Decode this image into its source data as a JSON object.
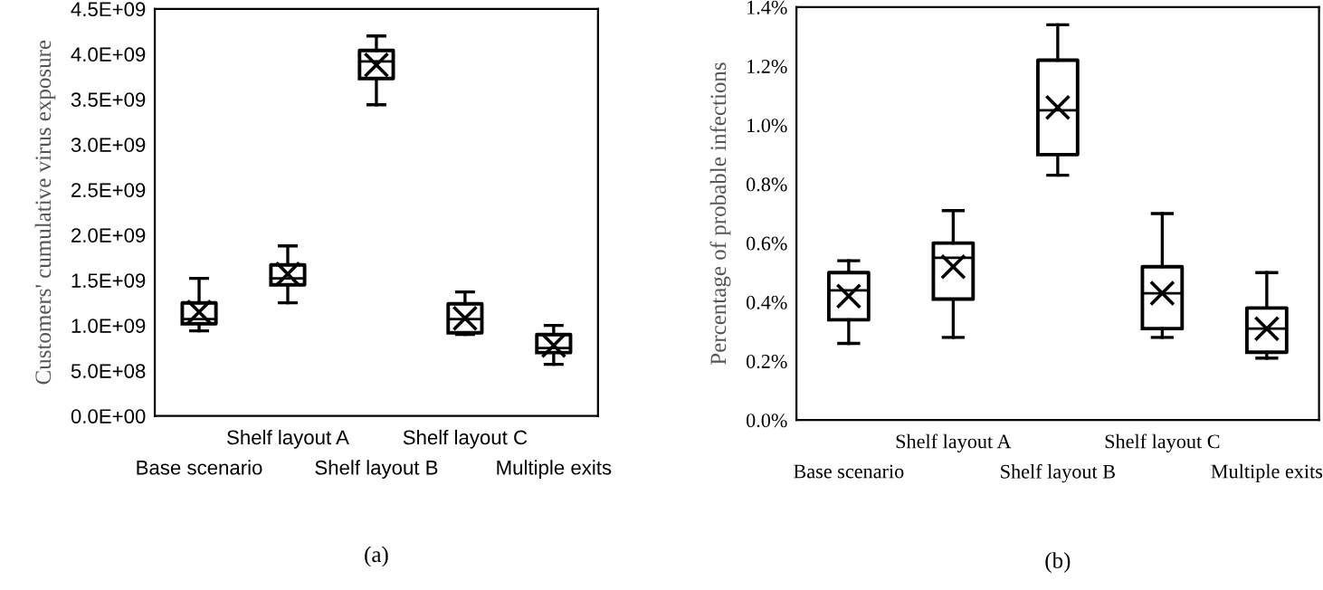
{
  "chart_data": [
    {
      "type": "box",
      "ylabel": "Customers' cumulative virus exposure",
      "categories": [
        "Base scenario",
        "Shelf layout A",
        "Shelf layout B",
        "Shelf layout C",
        "Multiple exits"
      ],
      "boxes": [
        {
          "low": 940000000,
          "q1": 1020000000,
          "median": 1070000000,
          "q3": 1250000000,
          "high": 1520000000,
          "mean": 1150000000
        },
        {
          "low": 1250000000,
          "q1": 1450000000,
          "median": 1520000000,
          "q3": 1670000000,
          "high": 1880000000,
          "mean": 1570000000
        },
        {
          "low": 3440000000,
          "q1": 3730000000,
          "median": 3920000000,
          "q3": 4040000000,
          "high": 4200000000,
          "mean": 3880000000
        },
        {
          "low": 900000000,
          "q1": 920000000,
          "median": 1070000000,
          "q3": 1240000000,
          "high": 1370000000,
          "mean": 1080000000
        },
        {
          "low": 570000000,
          "q1": 700000000,
          "median": 750000000,
          "q3": 900000000,
          "high": 1000000000,
          "mean": 780000000
        }
      ],
      "ylim": [
        0,
        4500000000
      ],
      "yticks": [
        {
          "value": 0,
          "label": "0.0E+00"
        },
        {
          "value": 500000000,
          "label": "5.0E+08"
        },
        {
          "value": 1000000000,
          "label": "1.0E+09"
        },
        {
          "value": 1500000000,
          "label": "1.5E+09"
        },
        {
          "value": 2000000000,
          "label": "2.0E+09"
        },
        {
          "value": 2500000000,
          "label": "2.5E+09"
        },
        {
          "value": 3000000000,
          "label": "3.0E+09"
        },
        {
          "value": 3500000000,
          "label": "3.5E+09"
        },
        {
          "value": 4000000000,
          "label": "4.0E+09"
        },
        {
          "value": 4500000000,
          "label": "4.5E+09"
        }
      ],
      "grid": false,
      "marker": "cross",
      "annotations": [
        "(a)"
      ]
    },
    {
      "type": "box",
      "ylabel": "Percentage of probable infections",
      "categories": [
        "Base scenario",
        "Shelf layout A",
        "Shelf layout B",
        "Shelf layout C",
        "Multiple exits"
      ],
      "boxes": [
        {
          "low": 0.26,
          "q1": 0.34,
          "median": 0.44,
          "q3": 0.5,
          "high": 0.54,
          "mean": 0.42
        },
        {
          "low": 0.28,
          "q1": 0.41,
          "median": 0.55,
          "q3": 0.6,
          "high": 0.71,
          "mean": 0.52
        },
        {
          "low": 0.83,
          "q1": 0.9,
          "median": 1.05,
          "q3": 1.22,
          "high": 1.34,
          "mean": 1.06
        },
        {
          "low": 0.28,
          "q1": 0.31,
          "median": 0.43,
          "q3": 0.52,
          "high": 0.7,
          "mean": 0.43
        },
        {
          "low": 0.21,
          "q1": 0.23,
          "median": 0.31,
          "q3": 0.38,
          "high": 0.5,
          "mean": 0.31
        }
      ],
      "ylim": [
        0,
        1.4
      ],
      "yticks": [
        {
          "value": 0,
          "label": "0.0%"
        },
        {
          "value": 0.2,
          "label": "0.2%"
        },
        {
          "value": 0.4,
          "label": "0.4%"
        },
        {
          "value": 0.6,
          "label": "0.6%"
        },
        {
          "value": 0.8,
          "label": "0.8%"
        },
        {
          "value": 1.0,
          "label": "1.0%"
        },
        {
          "value": 1.2,
          "label": "1.2%"
        },
        {
          "value": 1.4,
          "label": "1.4%"
        }
      ],
      "grid": false,
      "marker": "cross",
      "annotations": [
        "(b)"
      ]
    }
  ]
}
